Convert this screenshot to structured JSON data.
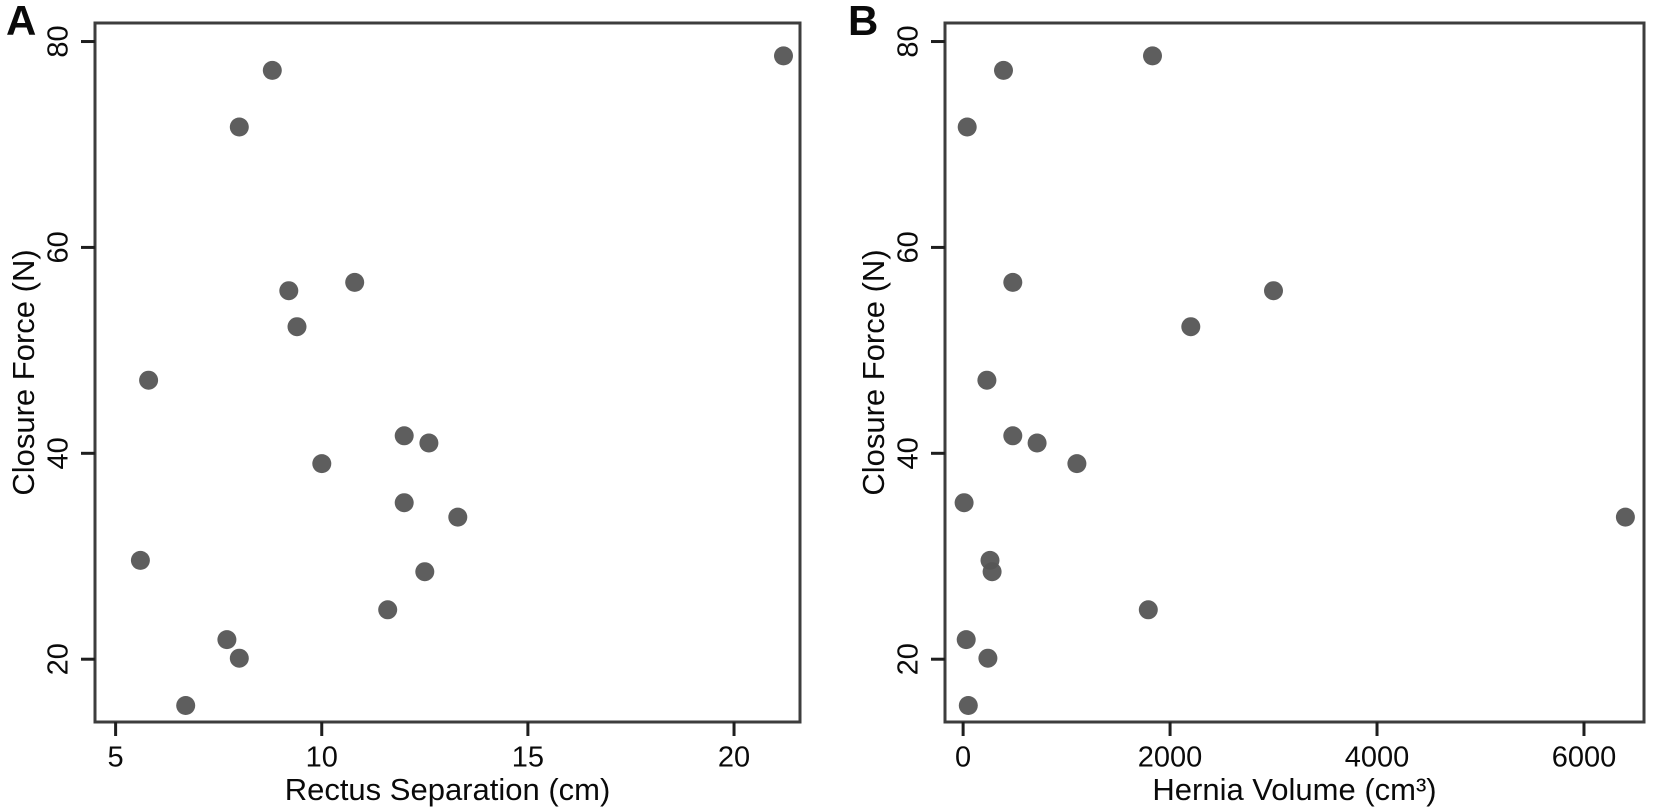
{
  "figure": {
    "panels": [
      {
        "label": "A"
      },
      {
        "label": "B"
      }
    ]
  },
  "chart_data": [
    {
      "type": "scatter",
      "panel_label": "A",
      "title": "",
      "xlabel": "Rectus Separation (cm)",
      "ylabel": "Closure Force (N)",
      "xlim": [
        4.5,
        21.6
      ],
      "ylim": [
        13.9,
        81.8
      ],
      "xticks": [
        5,
        10,
        15,
        20
      ],
      "yticks": [
        20,
        40,
        60,
        80
      ],
      "grid": false,
      "legend": "none",
      "marker": {
        "shape": "circle",
        "color": "#555555",
        "radius_px": 9.5
      },
      "points": [
        [
          5.6,
          29.6
        ],
        [
          5.8,
          47.1
        ],
        [
          6.7,
          15.5
        ],
        [
          7.7,
          21.9
        ],
        [
          8.0,
          20.1
        ],
        [
          8.0,
          71.7
        ],
        [
          8.8,
          77.2
        ],
        [
          9.2,
          55.8
        ],
        [
          9.4,
          52.3
        ],
        [
          10.0,
          39.0
        ],
        [
          10.8,
          56.6
        ],
        [
          11.6,
          24.8
        ],
        [
          12.0,
          35.2
        ],
        [
          12.0,
          41.7
        ],
        [
          12.5,
          28.5
        ],
        [
          12.6,
          41.0
        ],
        [
          13.3,
          33.8
        ],
        [
          21.2,
          78.6
        ]
      ]
    },
    {
      "type": "scatter",
      "panel_label": "B",
      "title": "",
      "xlabel": "Hernia Volume (cm³)",
      "ylabel": "Closure Force (N)",
      "xlim": [
        -175,
        6580
      ],
      "ylim": [
        13.9,
        81.8
      ],
      "xticks": [
        0,
        2000,
        4000,
        6000
      ],
      "yticks": [
        20,
        40,
        60,
        80
      ],
      "grid": false,
      "legend": "none",
      "marker": {
        "shape": "circle",
        "color": "#555555",
        "radius_px": 9.5
      },
      "points": [
        [
          10,
          35.2
        ],
        [
          30,
          21.9
        ],
        [
          40,
          71.7
        ],
        [
          50,
          15.5
        ],
        [
          230,
          47.1
        ],
        [
          240,
          20.1
        ],
        [
          260,
          29.6
        ],
        [
          280,
          28.5
        ],
        [
          390,
          77.2
        ],
        [
          480,
          56.6
        ],
        [
          480,
          41.7
        ],
        [
          715,
          41.0
        ],
        [
          1100,
          39.0
        ],
        [
          1790,
          24.8
        ],
        [
          1830,
          78.6
        ],
        [
          2200,
          52.3
        ],
        [
          3000,
          55.8
        ],
        [
          6400,
          33.8
        ]
      ]
    }
  ],
  "style": {
    "marker_color": "#555555",
    "axis_color": "#3d3d3d",
    "tick_color": "#1e1e1e",
    "text_color": "#0a0a0a",
    "background": "#ffffff"
  }
}
